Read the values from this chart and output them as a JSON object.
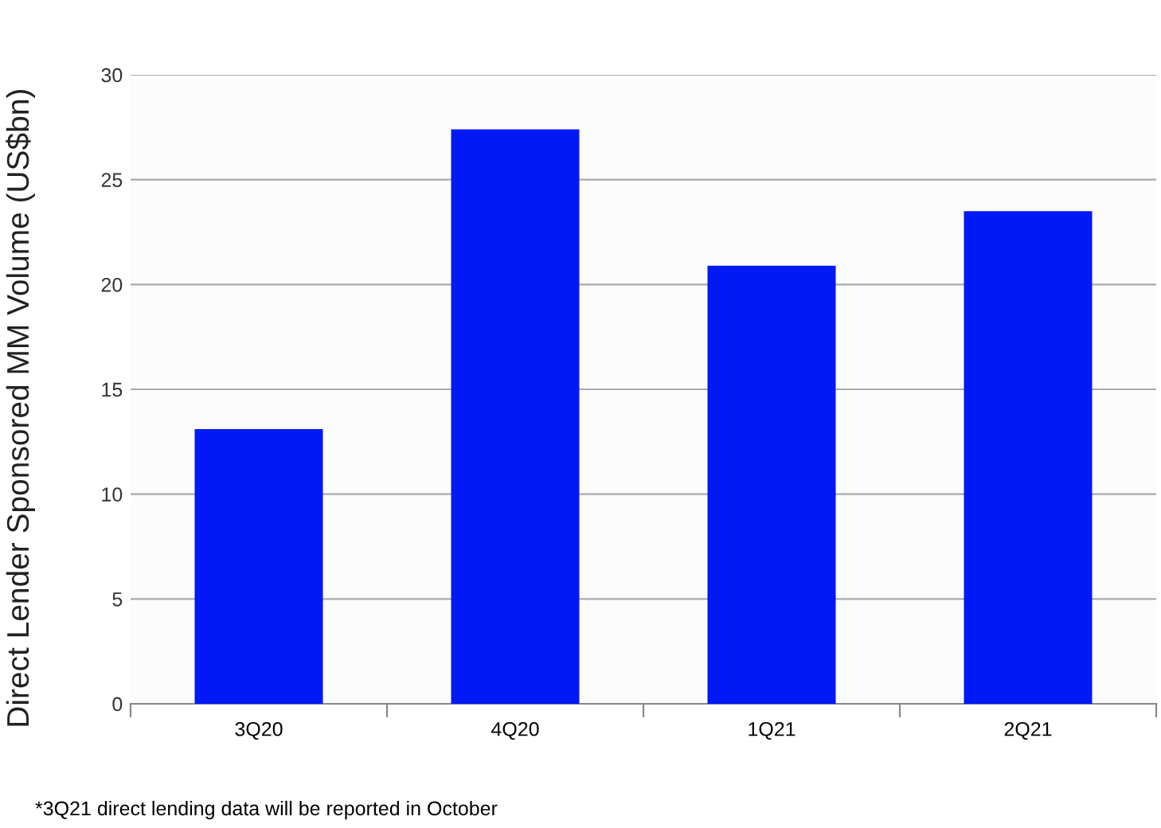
{
  "chart_data": {
    "type": "bar",
    "ylabel": "Direct Lender Sponsored MM Volume (US$bn)",
    "categories": [
      "3Q20",
      "4Q20",
      "1Q21",
      "2Q21"
    ],
    "values": [
      13.1,
      27.4,
      20.9,
      23.5
    ],
    "color": "#0019f5",
    "ylim": [
      0,
      30
    ],
    "yticks": [
      0,
      5,
      10,
      15,
      20,
      25,
      30
    ],
    "grid": "y",
    "annotations": [
      "*3Q21 direct lending data will be reported in October"
    ]
  }
}
